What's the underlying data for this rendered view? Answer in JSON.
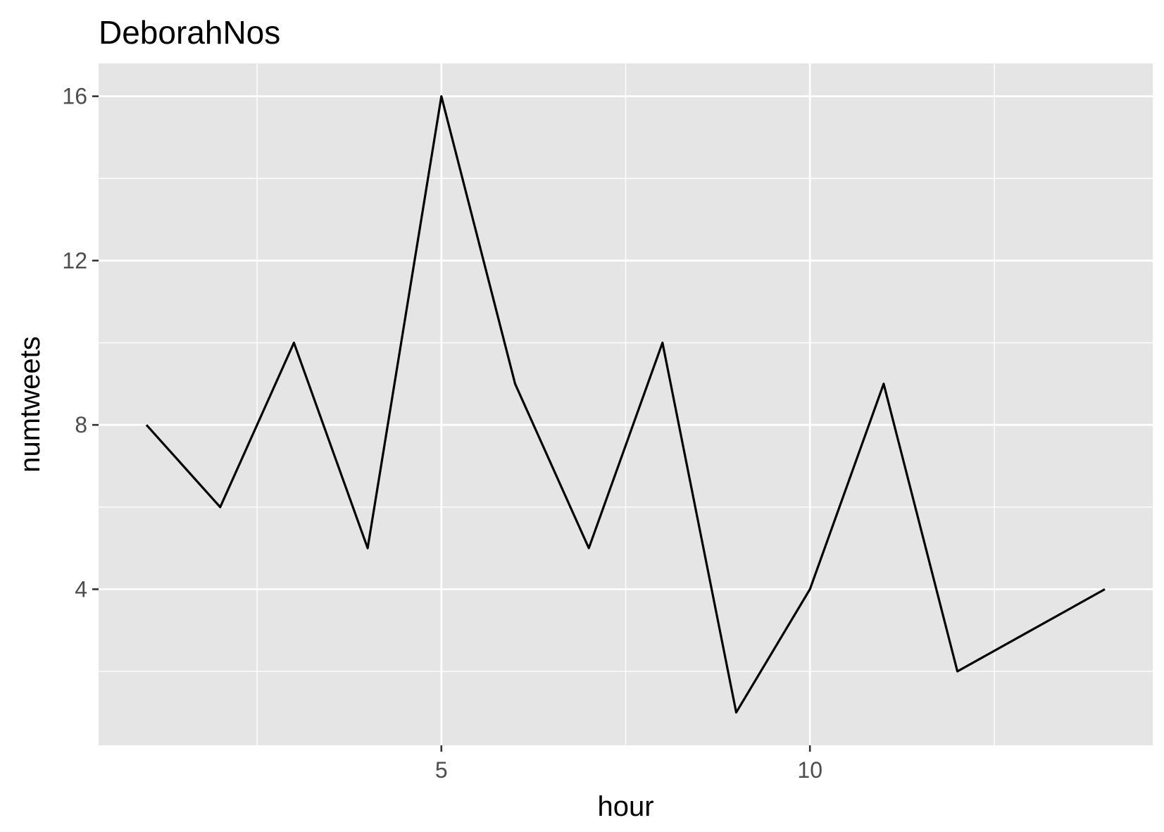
{
  "chart_data": {
    "type": "line",
    "title": "DeborahNos",
    "xlabel": "hour",
    "ylabel": "numtweets",
    "xlim": [
      0.35,
      14.65
    ],
    "ylim": [
      0.2,
      16.8
    ],
    "x_ticks": [
      5,
      10
    ],
    "y_ticks": [
      4,
      8,
      12,
      16
    ],
    "grid": true,
    "legend": "none",
    "series": [
      {
        "x": [
          1,
          2,
          3,
          4,
          5,
          6,
          7,
          8,
          9,
          10,
          11,
          12,
          13,
          14
        ],
        "values": [
          8,
          6,
          10,
          5,
          16,
          9,
          5,
          10,
          1,
          4,
          9,
          2,
          3,
          4
        ]
      }
    ],
    "colors": {
      "panel": "#e5e5e5",
      "grid": "#ffffff",
      "line": "#000000",
      "tick_text": "#4d4d4d"
    }
  }
}
